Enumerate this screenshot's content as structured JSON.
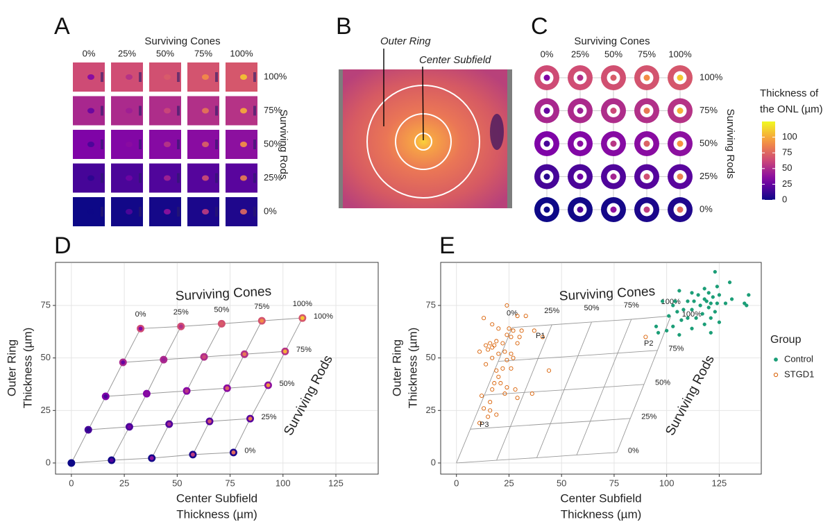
{
  "chart_data": [
    {
      "type": "tile-grid",
      "panel": "A",
      "x_label": "Surviving Cones",
      "y_label": "Surviving Rods",
      "x_categories": [
        "0%",
        "25%",
        "50%",
        "75%",
        "100%"
      ],
      "y_categories": [
        "100%",
        "75%",
        "50%",
        "25%",
        "0%"
      ]
    },
    {
      "type": "image",
      "panel": "B",
      "annotations": [
        "Outer Ring",
        "Center Subfield"
      ]
    },
    {
      "type": "ring-grid",
      "panel": "C",
      "x_label": "Surviving Cones",
      "y_label": "Surviving Rods",
      "x_categories": [
        "0%",
        "25%",
        "50%",
        "75%",
        "100%"
      ],
      "y_categories": [
        "100%",
        "75%",
        "50%",
        "25%",
        "0%"
      ],
      "colorbar": {
        "title": [
          "Thickness of",
          "the ONL (µm)"
        ],
        "lim": [
          0,
          125
        ],
        "ticks": [
          0,
          25,
          50,
          75,
          100
        ]
      }
    },
    {
      "type": "scatter-grid",
      "panel": "D",
      "x_title": [
        "Center Subfield",
        "Thickness (µm)"
      ],
      "y_title": [
        "Outer Ring",
        "Thickness (µm)"
      ],
      "xlim": [
        -7.5,
        145
      ],
      "ylim": [
        -5.3,
        95.5
      ],
      "xticks": [
        0,
        25,
        50,
        75,
        100,
        125
      ],
      "yticks": [
        0,
        25,
        50,
        75
      ],
      "grid": true,
      "annotations": [
        "Surviving Cones",
        "Surviving Rods"
      ],
      "cone_labels": [
        "0%",
        "25%",
        "50%",
        "75%",
        "100%"
      ],
      "series": [
        {
          "name": "100%",
          "x": [
            32.7,
            51.8,
            71,
            90,
            109.2
          ],
          "values": [
            64,
            65,
            66.3,
            67.7,
            69
          ]
        },
        {
          "name": "75%",
          "x": [
            24.4,
            43.6,
            62.7,
            81.8,
            101
          ],
          "values": [
            47.9,
            49.2,
            50.5,
            51.8,
            53.1
          ]
        },
        {
          "name": "50%",
          "x": [
            16.2,
            35.6,
            54.5,
            73.6,
            93
          ],
          "values": [
            31.7,
            33,
            34.3,
            35.6,
            37
          ]
        },
        {
          "name": "25%",
          "x": [
            8,
            27.4,
            46.2,
            65.3,
            84.5
          ],
          "values": [
            15.8,
            17.2,
            18.5,
            19.8,
            21.1
          ]
        },
        {
          "name": "0%",
          "x": [
            0,
            19,
            38,
            57.4,
            76.6
          ],
          "values": [
            0,
            1.3,
            2.3,
            4,
            5
          ]
        }
      ]
    },
    {
      "type": "scatter",
      "panel": "E",
      "x_title": [
        "Center Subfield",
        "Thickness (µm)"
      ],
      "y_title": [
        "Outer Ring",
        "Thickness (µm)"
      ],
      "xlim": [
        -7.5,
        145
      ],
      "ylim": [
        -5.3,
        95.5
      ],
      "xticks": [
        0,
        25,
        50,
        75,
        100,
        125
      ],
      "yticks": [
        0,
        25,
        50,
        75
      ],
      "grid": true,
      "annotations": [
        "Surviving Cones",
        "Surviving Rods"
      ],
      "point_labels": [
        "P1",
        "P2",
        "P3"
      ],
      "legend_title": "Group",
      "model": {
        "cone_labels": [
          "0%",
          "25%",
          "50%",
          "75%",
          "100%"
        ],
        "color": "#999999",
        "series": [
          {
            "name": "100%",
            "x": [
              26.5,
              45.4,
              64.3,
              83.2,
              102
            ],
            "values": [
              64.5,
              65.8,
              67.1,
              68.4,
              70
            ]
          },
          {
            "name": "75%",
            "x": [
              19.9,
              38.8,
              57.8,
              76.7,
              95.6
            ],
            "values": [
              48.4,
              49.7,
              51,
              52.3,
              53.6
            ]
          },
          {
            "name": "50%",
            "x": [
              13.3,
              32.3,
              51.2,
              70.2,
              89.2
            ],
            "values": [
              32.3,
              33.6,
              34.8,
              36.1,
              37.4
            ]
          },
          {
            "name": "25%",
            "x": [
              6.6,
              25.7,
              44.7,
              63.7,
              82.7
            ],
            "values": [
              16.1,
              17.4,
              18.7,
              19.9,
              21.2
            ]
          },
          {
            "name": "0%",
            "x": [
              0,
              19.1,
              38.2,
              57.2,
              76.3
            ],
            "values": [
              0,
              1.3,
              2.5,
              3.8,
              5
            ]
          }
        ]
      },
      "series": [
        {
          "name": "Control",
          "color": "#1b9e77",
          "marker": "filled",
          "x": [
            123,
            130,
            124,
            118,
            106,
            112,
            120,
            139,
            115,
            125,
            122,
            118,
            131,
            98,
            104,
            110,
            113,
            119,
            121,
            137,
            124,
            128,
            103,
            116,
            120,
            138,
            108,
            112,
            105,
            123,
            117,
            101,
            110,
            114,
            121,
            107,
            125,
            118,
            95,
            103,
            112,
            100,
            96,
            106,
            121
          ],
          "values": [
            91,
            86,
            84,
            83,
            82,
            81,
            81,
            80,
            80,
            80,
            79,
            78,
            78,
            77,
            77,
            77,
            77,
            77,
            76,
            76,
            76,
            76,
            75,
            75,
            74,
            75,
            73,
            73,
            72,
            72,
            71,
            70,
            69,
            69,
            69,
            68,
            67,
            66,
            65,
            65,
            64,
            63,
            62,
            61,
            62
          ]
        },
        {
          "name": "STGD1",
          "color": "#d95f02",
          "marker": "open",
          "x": [
            24,
            13,
            29,
            33,
            37,
            31,
            27,
            25,
            20,
            17,
            24,
            30,
            26,
            19,
            22,
            16,
            14,
            18,
            29,
            17,
            15,
            11,
            23,
            20,
            26,
            27,
            24,
            17,
            14,
            22,
            19,
            26,
            20,
            18,
            21,
            24,
            28,
            17,
            23,
            36,
            29,
            12,
            13,
            16,
            16,
            19,
            11,
            15,
            44,
            41,
            90
          ],
          "values": [
            75,
            69,
            70,
            70,
            63,
            63,
            63,
            64,
            64,
            66,
            61,
            60,
            60,
            58,
            57,
            57,
            56,
            56,
            57,
            55,
            54,
            53,
            53,
            52,
            52,
            50,
            49,
            50,
            47,
            45,
            44,
            45,
            41,
            38,
            38,
            36,
            35,
            35,
            33,
            33,
            31,
            32,
            26,
            29,
            25,
            23,
            19,
            22,
            44,
            60,
            60
          ]
        }
      ]
    }
  ]
}
